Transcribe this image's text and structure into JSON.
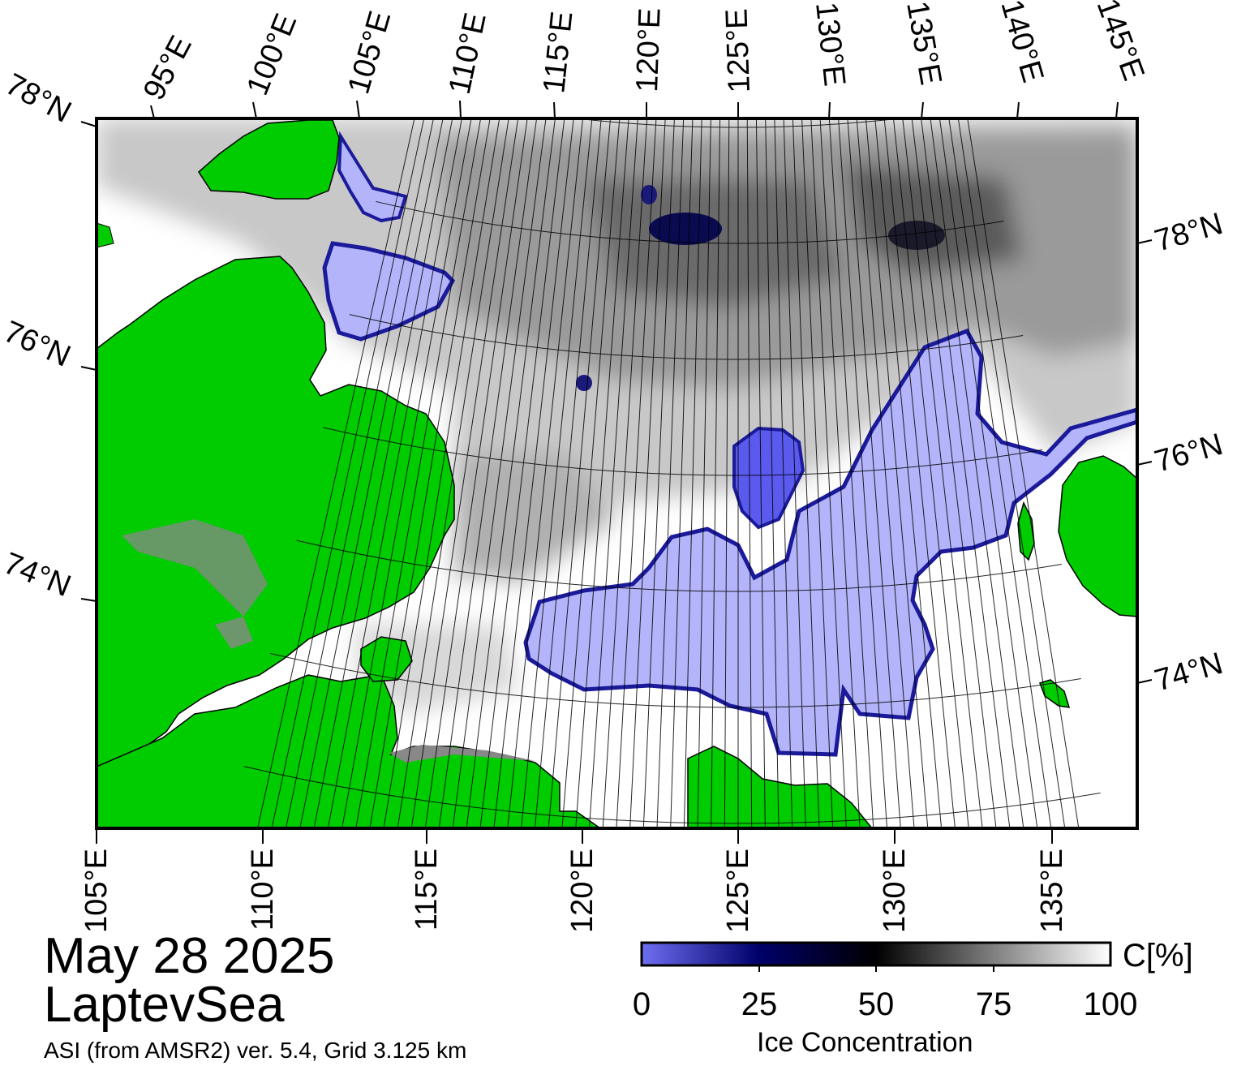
{
  "title": {
    "date": "May 28 2025",
    "region": "LaptevSea",
    "subtitle": "ASI (from AMSR2) ver. 5.4,  Grid 3.125 km"
  },
  "colorbar": {
    "unit": "C[%]",
    "label": "Ice Concentration",
    "ticks": [
      "0",
      "25",
      "50",
      "75",
      "100"
    ],
    "stops": [
      "#6f6ff2",
      "#00006a",
      "#000000",
      "#7f7f7f",
      "#ffffff"
    ]
  },
  "colors": {
    "land": "#00cc00",
    "landfast": "#888888",
    "open_water": "#b4b4fb",
    "ice_edge": "#1a1a9a",
    "frame": "#000000"
  },
  "axes": {
    "top_lon_labels": [
      "95°E",
      "100°E",
      "105°E",
      "110°E",
      "115°E",
      "120°E",
      "125°E",
      "130°E",
      "135°E",
      "140°E",
      "145°E"
    ],
    "bottom_lon_labels": [
      "105°E",
      "110°E",
      "115°E",
      "120°E",
      "125°E",
      "130°E",
      "135°E"
    ],
    "left_lat_labels": [
      "78°N",
      "76°N",
      "74°N"
    ],
    "right_lat_labels": [
      "78°N",
      "76°N",
      "74°N"
    ]
  }
}
